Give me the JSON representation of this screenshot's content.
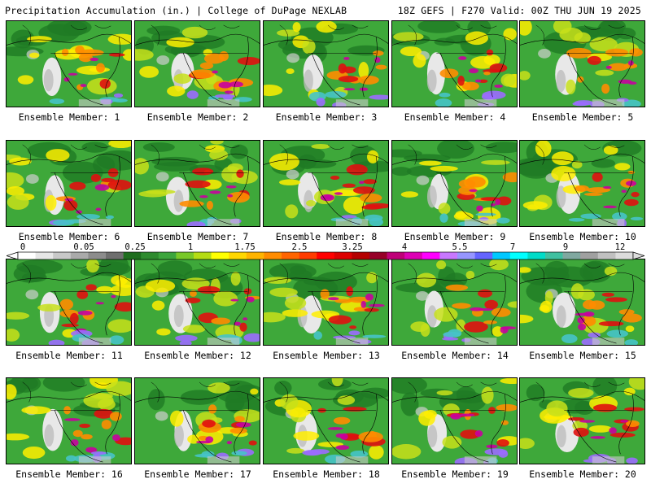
{
  "header": {
    "left": "Precipitation Accumulation (in.) | College of DuPage NEXLAB",
    "right": "18Z GEFS | F270 Valid: 00Z THU JUN 19 2025"
  },
  "panels": [
    {
      "label": "Ensemble Member: 1"
    },
    {
      "label": "Ensemble Member: 2"
    },
    {
      "label": "Ensemble Member: 3"
    },
    {
      "label": "Ensemble Member: 4"
    },
    {
      "label": "Ensemble Member: 5"
    },
    {
      "label": "Ensemble Member: 6"
    },
    {
      "label": "Ensemble Member: 7"
    },
    {
      "label": "Ensemble Member: 8"
    },
    {
      "label": "Ensemble Member: 9"
    },
    {
      "label": "Ensemble Member: 10"
    },
    {
      "label": "Ensemble Member: 11"
    },
    {
      "label": "Ensemble Member: 12"
    },
    {
      "label": "Ensemble Member: 13"
    },
    {
      "label": "Ensemble Member: 14"
    },
    {
      "label": "Ensemble Member: 15"
    },
    {
      "label": "Ensemble Member: 16"
    },
    {
      "label": "Ensemble Member: 17"
    },
    {
      "label": "Ensemble Member: 18"
    },
    {
      "label": "Ensemble Member: 19"
    },
    {
      "label": "Ensemble Member: 20"
    }
  ],
  "colorbar": {
    "ticks": [
      "0",
      "0.05",
      "0.25",
      "1",
      "1.75",
      "2.5",
      "3.25",
      "4",
      "5.5",
      "7",
      "9",
      "12"
    ],
    "colors": [
      "#ffffff",
      "#e6e6e6",
      "#c8c8c8",
      "#aaaaaa",
      "#8c8c8c",
      "#6e6e6e",
      "#1e6e1e",
      "#2e8b2e",
      "#3ca53c",
      "#78c828",
      "#b4dc14",
      "#ffff00",
      "#ffd700",
      "#ffb400",
      "#ff8c00",
      "#ff6400",
      "#ff3c00",
      "#ff0000",
      "#dc0000",
      "#b40000",
      "#960028",
      "#be0078",
      "#dc00b4",
      "#ff00ff",
      "#c878ff",
      "#9696ff",
      "#6464ff",
      "#00c8ff",
      "#00ffff",
      "#00dcc8",
      "#40c0a0",
      "#80a8a0",
      "#a0a0a0",
      "#c0c0c0",
      "#dcdcdc"
    ]
  }
}
